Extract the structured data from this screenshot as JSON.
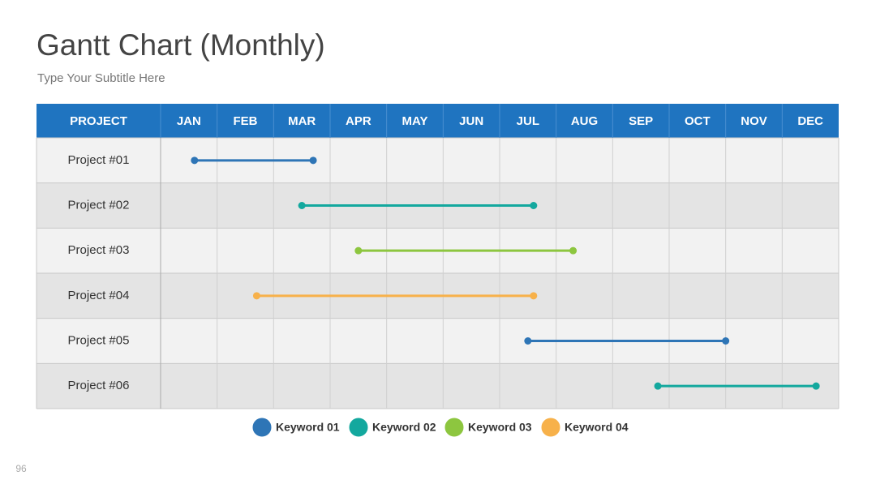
{
  "chart_data": {
    "type": "gantt",
    "title": "Gantt Chart (Monthly)",
    "subtitle": "Type Your Subtitle Here",
    "header": "PROJECT",
    "categories": [
      "JAN",
      "FEB",
      "MAR",
      "APR",
      "MAY",
      "JUN",
      "JUL",
      "AUG",
      "SEP",
      "OCT",
      "NOV",
      "DEC"
    ],
    "xlim": [
      0,
      12
    ],
    "tasks": [
      {
        "name": "Project #01",
        "start": 0.6,
        "end": 2.7,
        "color": "#2e75b6"
      },
      {
        "name": "Project #02",
        "start": 2.5,
        "end": 6.6,
        "color": "#13a89e"
      },
      {
        "name": "Project #03",
        "start": 3.5,
        "end": 7.3,
        "color": "#8dc63f"
      },
      {
        "name": "Project #04",
        "start": 1.7,
        "end": 6.6,
        "color": "#f7b14a"
      },
      {
        "name": "Project #05",
        "start": 6.5,
        "end": 10,
        "color": "#2e75b6"
      },
      {
        "name": "Project #06",
        "start": 8.8,
        "end": 11.6,
        "color": "#13a89e"
      }
    ],
    "legend": [
      {
        "name": "Keyword 01",
        "color": "#2e75b6"
      },
      {
        "name": "Keyword 02",
        "color": "#13a89e"
      },
      {
        "name": "Keyword 03",
        "color": "#8dc63f"
      },
      {
        "name": "Keyword 04",
        "color": "#f7b14a"
      }
    ],
    "page_number": "96"
  }
}
